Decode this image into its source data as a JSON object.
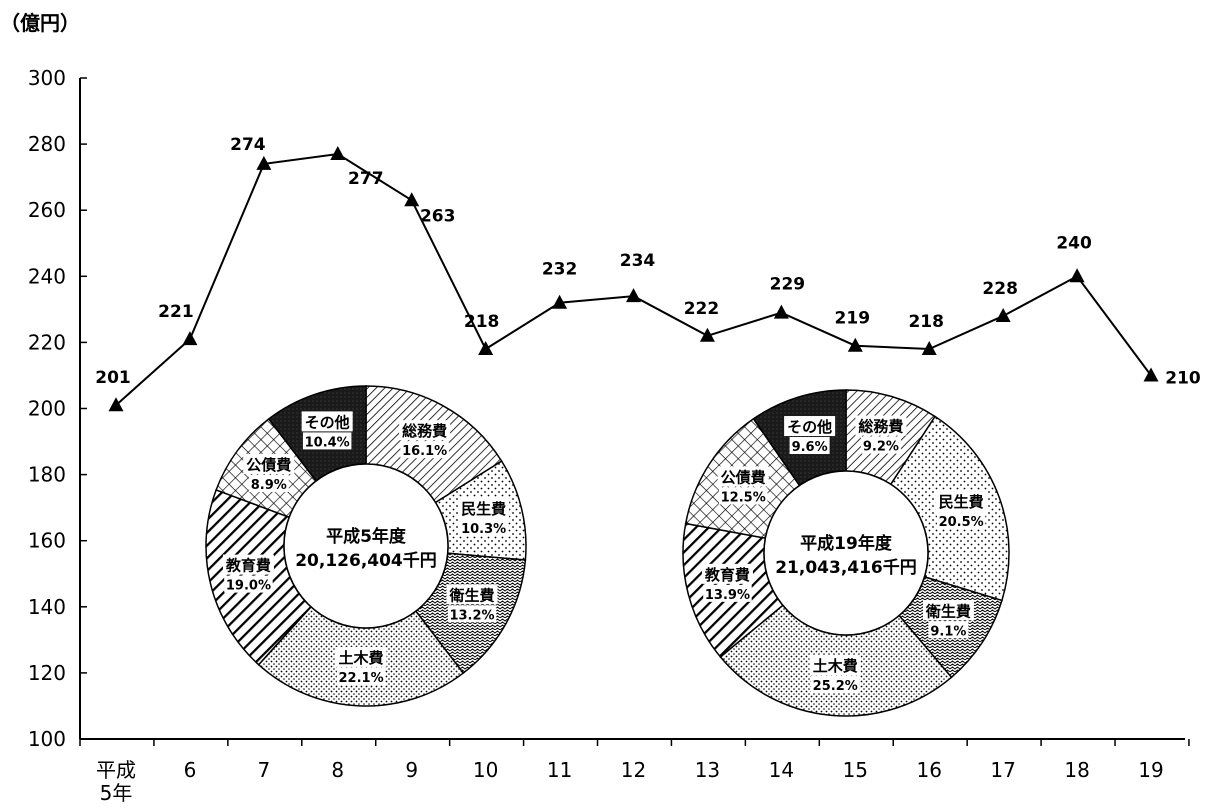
{
  "chart_data": [
    {
      "type": "line",
      "ylabel": "（億円）",
      "ylim": [
        100,
        300
      ],
      "y_ticks": [
        100,
        120,
        140,
        160,
        180,
        200,
        220,
        240,
        260,
        280,
        300
      ],
      "categories": [
        "平成\n5年",
        "6",
        "7",
        "8",
        "9",
        "10",
        "11",
        "12",
        "13",
        "14",
        "15",
        "16",
        "17",
        "18",
        "19"
      ],
      "series": [
        {
          "values": [
            201,
            221,
            274,
            277,
            263,
            218,
            232,
            234,
            222,
            229,
            219,
            218,
            228,
            240,
            210
          ]
        }
      ],
      "marker": "triangle",
      "data_labels": [
        "201",
        "221",
        "274",
        "277",
        "263",
        "218",
        "232",
        "234",
        "222",
        "229",
        "219",
        "218",
        "228",
        "240",
        "210"
      ]
    },
    {
      "type": "pie",
      "title": "平成5年度",
      "total": "20,126,404千円",
      "slices": [
        {
          "label": "総務費",
          "value": 16.1,
          "value_label": "16.1%",
          "pattern": "diagonal"
        },
        {
          "label": "民生費",
          "value": 10.3,
          "value_label": "10.3%",
          "pattern": "dots"
        },
        {
          "label": "衛生費",
          "value": 13.2,
          "value_label": "13.2%",
          "pattern": "wave"
        },
        {
          "label": "土木費",
          "value": 22.1,
          "value_label": "22.1%",
          "pattern": "dense-dots"
        },
        {
          "label": "教育費",
          "value": 19.0,
          "value_label": "19.0%",
          "pattern": "thick-diagonal"
        },
        {
          "label": "公債費",
          "value": 8.9,
          "value_label": "8.9%",
          "pattern": "cross"
        },
        {
          "label": "その他",
          "value": 10.4,
          "value_label": "10.4%",
          "pattern": "dark"
        }
      ]
    },
    {
      "type": "pie",
      "title": "平成19年度",
      "total": "21,043,416千円",
      "slices": [
        {
          "label": "総務費",
          "value": 9.2,
          "value_label": "9.2%",
          "pattern": "diagonal"
        },
        {
          "label": "民生費",
          "value": 20.5,
          "value_label": "20.5%",
          "pattern": "dots"
        },
        {
          "label": "衛生費",
          "value": 9.1,
          "value_label": "9.1%",
          "pattern": "wave"
        },
        {
          "label": "土木費",
          "value": 25.2,
          "value_label": "25.2%",
          "pattern": "dense-dots"
        },
        {
          "label": "教育費",
          "value": 13.9,
          "value_label": "13.9%",
          "pattern": "thick-diagonal"
        },
        {
          "label": "公債費",
          "value": 12.5,
          "value_label": "12.5%",
          "pattern": "cross"
        },
        {
          "label": "その他",
          "value": 9.6,
          "value_label": "9.6%",
          "pattern": "dark"
        }
      ]
    }
  ]
}
